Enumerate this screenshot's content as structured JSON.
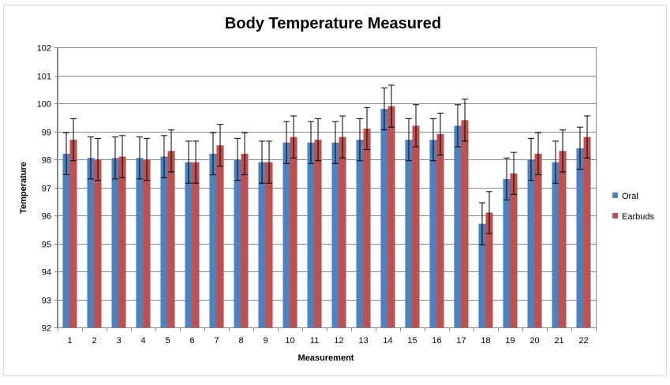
{
  "chart_data": {
    "type": "bar",
    "title": "Body Temperature Measured",
    "xlabel": "Measurement",
    "ylabel": "Temperature",
    "ylim": [
      92,
      102
    ],
    "yticks": [
      92,
      93,
      94,
      95,
      96,
      97,
      98,
      99,
      100,
      101,
      102
    ],
    "grid": true,
    "legend_position": "right",
    "categories": [
      "1",
      "2",
      "3",
      "4",
      "5",
      "6",
      "7",
      "8",
      "9",
      "10",
      "11",
      "12",
      "13",
      "14",
      "15",
      "16",
      "17",
      "18",
      "19",
      "20",
      "21",
      "22"
    ],
    "error_bar": 0.75,
    "series": [
      {
        "name": "Oral",
        "color": "#4f81bd",
        "values": [
          98.2,
          98.05,
          98.05,
          98.05,
          98.1,
          97.9,
          98.2,
          98.0,
          97.9,
          98.6,
          98.6,
          98.6,
          98.7,
          99.8,
          98.7,
          98.7,
          99.2,
          95.7,
          97.3,
          98.0,
          97.9,
          98.4
        ]
      },
      {
        "name": "Earbuds",
        "color": "#c0504d",
        "values": [
          98.7,
          98.0,
          98.1,
          98.0,
          98.3,
          97.9,
          98.5,
          98.2,
          97.9,
          98.8,
          98.7,
          98.8,
          99.1,
          99.9,
          99.2,
          98.9,
          99.4,
          96.1,
          97.5,
          98.2,
          98.3,
          98.8
        ]
      }
    ]
  }
}
